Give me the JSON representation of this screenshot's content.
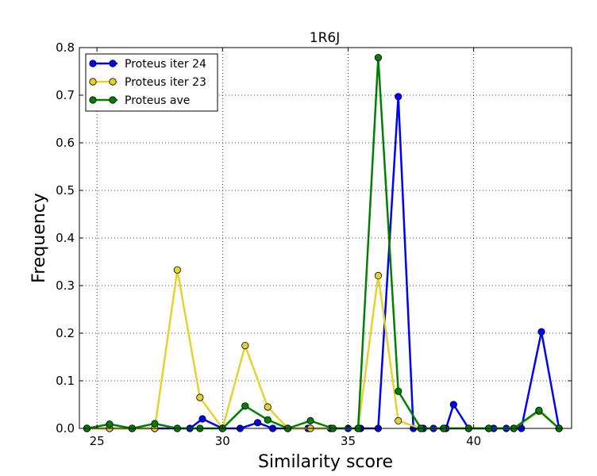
{
  "chart_data": {
    "type": "line",
    "title": "1R6J",
    "xlabel": "Similarity score",
    "ylabel": "Frequency",
    "xlim": [
      24.3,
      43.9
    ],
    "ylim": [
      0.0,
      0.8
    ],
    "xticks": [
      25,
      30,
      35,
      40
    ],
    "yticks": [
      0.0,
      0.1,
      0.2,
      0.3,
      0.4,
      0.5,
      0.6,
      0.7,
      0.8
    ],
    "ytick_labels": [
      "0.0",
      "0.1",
      "0.2",
      "0.3",
      "0.4",
      "0.5",
      "0.6",
      "0.7",
      "0.8"
    ],
    "grid": true,
    "legend_position": "top-left",
    "series": [
      {
        "name": "Proteus iter 24",
        "color": "#0000ff",
        "points": [
          [
            24.6,
            0.0
          ],
          [
            25.5,
            0.0
          ],
          [
            26.4,
            0.0
          ],
          [
            27.3,
            0.0
          ],
          [
            28.2,
            0.0
          ],
          [
            28.7,
            0.0
          ],
          [
            29.2,
            0.02
          ],
          [
            30.0,
            0.0
          ],
          [
            30.7,
            0.0
          ],
          [
            31.4,
            0.012
          ],
          [
            32.0,
            0.0
          ],
          [
            32.6,
            0.0
          ],
          [
            33.4,
            0.0
          ],
          [
            34.3,
            0.0
          ],
          [
            35.0,
            0.0
          ],
          [
            35.5,
            0.0
          ],
          [
            36.2,
            0.0
          ],
          [
            37.0,
            0.697
          ],
          [
            37.6,
            0.0
          ],
          [
            38.0,
            0.0
          ],
          [
            38.4,
            0.0
          ],
          [
            38.9,
            0.0
          ],
          [
            39.2,
            0.05
          ],
          [
            39.8,
            0.0
          ],
          [
            40.6,
            0.0
          ],
          [
            40.8,
            0.0
          ],
          [
            41.3,
            0.0
          ],
          [
            41.6,
            0.0
          ],
          [
            41.9,
            0.0
          ],
          [
            42.7,
            0.203
          ],
          [
            43.4,
            0.0
          ]
        ]
      },
      {
        "name": "Proteus iter 23",
        "color": "#e5d22e",
        "points": [
          [
            24.6,
            0.0
          ],
          [
            25.5,
            0.0
          ],
          [
            26.4,
            0.0
          ],
          [
            27.3,
            0.0
          ],
          [
            28.2,
            0.333
          ],
          [
            29.1,
            0.065
          ],
          [
            30.0,
            0.0
          ],
          [
            30.9,
            0.174
          ],
          [
            31.8,
            0.045
          ],
          [
            32.6,
            0.0
          ],
          [
            33.5,
            0.0
          ],
          [
            35.4,
            0.0
          ],
          [
            36.2,
            0.321
          ],
          [
            37.0,
            0.016
          ],
          [
            37.9,
            0.0
          ],
          [
            38.8,
            0.0
          ],
          [
            39.8,
            0.0
          ],
          [
            40.6,
            0.0
          ],
          [
            41.6,
            0.0
          ],
          [
            42.6,
            0.036
          ],
          [
            43.4,
            0.0
          ]
        ]
      },
      {
        "name": "Proteus ave",
        "color": "#008000",
        "points": [
          [
            24.6,
            0.0
          ],
          [
            25.5,
            0.009
          ],
          [
            26.4,
            0.0
          ],
          [
            27.3,
            0.01
          ],
          [
            28.2,
            0.0
          ],
          [
            29.1,
            0.0
          ],
          [
            30.0,
            0.0
          ],
          [
            30.9,
            0.047
          ],
          [
            31.8,
            0.018
          ],
          [
            32.6,
            0.0
          ],
          [
            33.5,
            0.016
          ],
          [
            34.4,
            0.0
          ],
          [
            35.4,
            0.0
          ],
          [
            36.2,
            0.779
          ],
          [
            37.0,
            0.078
          ],
          [
            37.9,
            0.0
          ],
          [
            38.8,
            0.0
          ],
          [
            39.8,
            0.0
          ],
          [
            40.6,
            0.0
          ],
          [
            41.6,
            0.0
          ],
          [
            42.6,
            0.038
          ],
          [
            43.4,
            0.0
          ]
        ]
      }
    ]
  }
}
